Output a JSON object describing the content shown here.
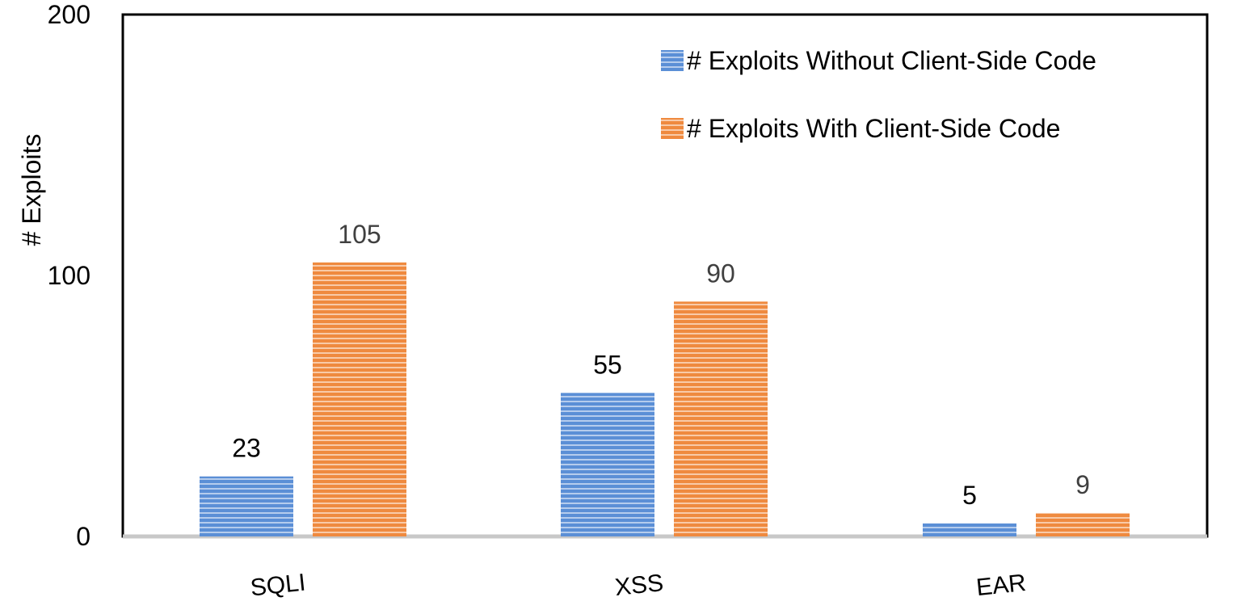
{
  "chart_data": {
    "type": "bar",
    "title": "",
    "xlabel": "",
    "ylabel": "# Exploits",
    "ylim": [
      0,
      200
    ],
    "yticks": [
      0,
      100,
      200
    ],
    "categories": [
      "SQLI",
      "XSS",
      "EAR"
    ],
    "series": [
      {
        "name": "# Exploits Without Client-Side Code",
        "values": [
          23,
          55,
          5
        ],
        "labels": [
          "23",
          "55",
          "5"
        ],
        "color": "#5b8fd6",
        "stripe_color": "#ffffff"
      },
      {
        "name": "# Exploits With Client-Side Code",
        "values": [
          105,
          90,
          9
        ],
        "labels": [
          "105",
          "90",
          "9"
        ],
        "color": "#ef8a3f",
        "stripe_color": "#ffffff"
      }
    ],
    "legend_position": "top-right",
    "grid": false,
    "bar_pattern": "horizontal-stripes",
    "data_label_colors": [
      "#000000",
      "#404040"
    ]
  }
}
